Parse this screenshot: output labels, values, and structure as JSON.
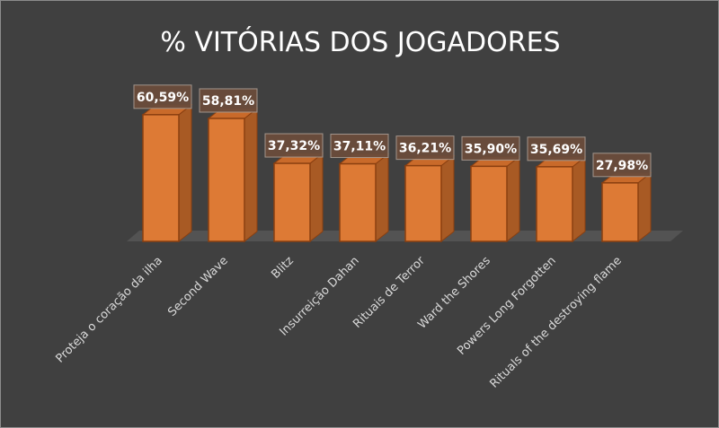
{
  "chart_data": {
    "type": "bar",
    "title": "% VITÓRIAS DOS JOGADORES",
    "categories": [
      "Proteja o coração da ilha",
      "Second Wave",
      "Blitz",
      "Insurreição Dahan",
      "Rituais de Terror",
      "Ward the Shores",
      "Powers Long Forgotten",
      "Rituals of the destroying flame"
    ],
    "values": [
      60.59,
      58.81,
      37.32,
      37.11,
      36.21,
      35.9,
      35.69,
      27.98
    ],
    "data_labels": [
      "60,59%",
      "58,81%",
      "37,32%",
      "37,11%",
      "36,21%",
      "35,90%",
      "35,69%",
      "27,98%"
    ],
    "xlabel": "",
    "ylabel": "",
    "ylim": [
      0,
      65
    ],
    "grid": false,
    "legend": "none",
    "colors": {
      "bar_front": "#dd7a35",
      "bar_side": "#a85a24",
      "bar_top": "#c96a2a",
      "bar_edge": "#8a3f10",
      "floor": "#535353",
      "background": "#404040",
      "label_box": "#6b4c3b",
      "text": "#ffffff",
      "axis_text": "#d9d9d9"
    }
  }
}
